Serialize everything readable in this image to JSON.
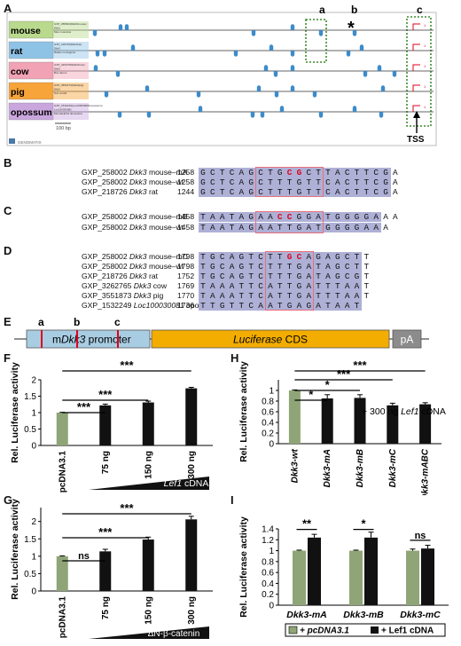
{
  "panelA": {
    "label": "A",
    "species": [
      {
        "name": "mouse",
        "color": "#b9d98c",
        "box_lines": [
          "GXP_258002(Dkk3/mouse)",
          "Dkk3",
          "Mus musculus"
        ]
      },
      {
        "name": "rat",
        "color": "#8fc3e6",
        "box_lines": [
          "GXP_218726(Dkk3/rat)",
          "Dkk3",
          "Rattus norvegicus"
        ]
      },
      {
        "name": "cow",
        "color": "#f2a2b5",
        "box_lines": [
          "GXP_3262765(Dkk3/cow)",
          "Dkk3",
          "Bos taurus"
        ]
      },
      {
        "name": "pig",
        "color": "#f7a43a",
        "box_lines": [
          "GXP_3551873(Dkk3/pig)",
          "Dkk3",
          "Sus scrofa"
        ]
      },
      {
        "name": "opossum",
        "color": "#c9a6de",
        "box_lines": [
          "GXP_1532249(Loc100030081/opossum)",
          "Loc100030081",
          "Monodelphis domestica"
        ]
      }
    ],
    "site_labels": [
      "a",
      "b",
      "c"
    ],
    "star": "*",
    "scalebar": "100 bp",
    "tss": "TSS",
    "footer_logo": "GENOMATIX"
  },
  "panelB": {
    "label": "B",
    "rows": [
      {
        "gene": "GXP_258002",
        "symbol": "Dkk3",
        "suffix": " mouse–mA",
        "pos": "1258",
        "seq": "GCTCAGCTGCGCTTACTTCGA"
      },
      {
        "gene": "GXP_258002",
        "symbol": "Dkk3",
        "suffix": " mouse–wt",
        "pos": "1258",
        "seq": "GCTCAGCTTTGTTCACTTCGA"
      },
      {
        "gene": "GXP_218726",
        "symbol": "Dkk3",
        "suffix": " rat",
        "pos": "1244",
        "seq": "GCTCAGCTTTGTTCACTTCGA"
      }
    ]
  },
  "panelC": {
    "label": "C",
    "rows": [
      {
        "gene": "GXP_258002",
        "symbol": "Dkk3",
        "suffix": " mouse–mB",
        "pos": "1458",
        "seq": "TAATAGAACCGGATGGGGAAA"
      },
      {
        "gene": "GXP_258002",
        "symbol": "Dkk3",
        "suffix": " mouse–wt",
        "pos": "1458",
        "seq": "TAATAGAATTGATGGGGAAA"
      }
    ]
  },
  "panelD": {
    "label": "D",
    "rows": [
      {
        "gene": "GXP_258002",
        "symbol": "Dkk3",
        "suffix": " mouse–mC",
        "pos": "1798",
        "seq": "TGCAGTCTTGCAGAGCTT"
      },
      {
        "gene": "GXP_258002",
        "symbol": "Dkk3",
        "suffix": " mouse–wt",
        "pos": "1798",
        "seq": "TGCAGTCTTTGATAGCTT"
      },
      {
        "gene": "GXP_218726",
        "symbol": "Dkk3",
        "suffix": " rat",
        "pos": "1752",
        "seq": "TGCAGTCTTTGATAGCGT"
      },
      {
        "gene": "GXP_3262765",
        "symbol": "Dkk3",
        "suffix": " cow",
        "pos": "1769",
        "seq": "TAAATTCATTGATTTAAT"
      },
      {
        "gene": "GXP_3551873",
        "symbol": "Dkk3",
        "suffix": " pig",
        "pos": "1770",
        "seq": "TAAATTCATTGATTTAAT"
      },
      {
        "gene": "GXP_1532249",
        "symbol": "Loc100030081",
        "suffix": " opossum",
        "pos": "1736",
        "seq": "TTGTTCAATGAGATAAT"
      }
    ]
  },
  "panelE": {
    "label": "E",
    "site_labels": [
      "a",
      "b",
      "c"
    ],
    "promoter_pre": "m",
    "promoter_gene": "Dkk3",
    "promoter_post": " promoter",
    "cds_gene": "Luciferase",
    "cds_post": " CDS",
    "pa": "pA"
  },
  "colors": {
    "control_bar": "#8fa577",
    "treatment_bar": "#111111",
    "mutant_site": "#e0001b",
    "seq_highlight": "#aeb0d6",
    "box_outline": "#e8707a",
    "promoter": "#a8cde3",
    "cds": "#f2ad00",
    "pa": "#8c8c8c"
  },
  "chart_data": [
    {
      "panel": "F",
      "type": "bar",
      "categories": [
        "pcDNA3.1",
        "75 ng",
        "150 ng",
        "300 ng"
      ],
      "values": [
        1.0,
        1.22,
        1.31,
        1.74
      ],
      "errors": [
        0.01,
        0.04,
        0.04,
        0.03
      ],
      "ylabel": "Rel. Luciferase activity",
      "ylim": [
        0,
        2
      ],
      "yticks": [
        "0",
        "0.5",
        "1",
        "1.5",
        "2"
      ],
      "treatment_label_gene": "Lef1",
      "treatment_label_post": " cDNA",
      "significance": [
        {
          "from": "pcDNA3.1",
          "to": "75 ng",
          "label": "***"
        },
        {
          "from": "pcDNA3.1",
          "to": "150 ng",
          "label": "***"
        },
        {
          "from": "pcDNA3.1",
          "to": "300 ng",
          "label": "***"
        }
      ]
    },
    {
      "panel": "G",
      "type": "bar",
      "categories": [
        "pcDNA3.1",
        "75 ng",
        "150 ng",
        "300 ng"
      ],
      "values": [
        1.0,
        1.14,
        1.48,
        2.06
      ],
      "errors": [
        0.01,
        0.06,
        0.07,
        0.09
      ],
      "ylabel": "Rel. Luciferase activity",
      "ylim": [
        0,
        2.4
      ],
      "yticks": [
        "0",
        "0.5",
        "1",
        "1.5",
        "2"
      ],
      "treatment_label": "ΔN-β-catenin",
      "significance": [
        {
          "from": "pcDNA3.1",
          "to": "75 ng",
          "label": "ns"
        },
        {
          "from": "pcDNA3.1",
          "to": "150 ng",
          "label": "***"
        },
        {
          "from": "pcDNA3.1",
          "to": "300 ng",
          "label": "***"
        }
      ]
    },
    {
      "panel": "H",
      "type": "bar",
      "categories": [
        "Dkk3-wt",
        "Dkk3-mA",
        "Dkk3-mB",
        "Dkk3-mC",
        "Dkk3-mABC"
      ],
      "values": [
        1.0,
        0.85,
        0.86,
        0.72,
        0.74
      ],
      "errors": [
        0.01,
        0.07,
        0.06,
        0.04,
        0.03
      ],
      "ylabel": "Rel. Luciferase activity",
      "ylim": [
        0,
        1.2
      ],
      "yticks": [
        "0",
        "0.2",
        "0.4",
        "0.6",
        "0.8",
        "1"
      ],
      "annotation_pre": "+ 300 ng ",
      "annotation_gene": "Lef1",
      "annotation_post": " cDNA",
      "significance": [
        {
          "from": "Dkk3-wt",
          "to": "Dkk3-mA",
          "label": "*"
        },
        {
          "from": "Dkk3-wt",
          "to": "Dkk3-mB",
          "label": "*"
        },
        {
          "from": "Dkk3-wt",
          "to": "Dkk3-mC",
          "label": "***"
        },
        {
          "from": "Dkk3-wt",
          "to": "Dkk3-mABC",
          "label": "***"
        }
      ]
    },
    {
      "panel": "I",
      "type": "bar",
      "categories": [
        "Dkk3-mA",
        "Dkk3-mB",
        "Dkk3-mC"
      ],
      "series": [
        {
          "name": "+ pcDNA3.1",
          "values": [
            1.0,
            1.0,
            1.0
          ],
          "errors": [
            0.01,
            0.01,
            0.03
          ]
        },
        {
          "name": "+ Lef1 cDNA",
          "values": [
            1.24,
            1.24,
            1.04
          ],
          "errors": [
            0.06,
            0.1,
            0.06
          ]
        }
      ],
      "ylabel": "Rel. Luciferase activity",
      "ylim": [
        0,
        1.4
      ],
      "yticks": [
        "0",
        "0.2",
        "0.4",
        "0.6",
        "0.8",
        "1",
        "1.2",
        "1.4"
      ],
      "significance": [
        {
          "group": "Dkk3-mA",
          "label": "**"
        },
        {
          "group": "Dkk3-mB",
          "label": "*"
        },
        {
          "group": "Dkk3-mC",
          "label": "ns"
        }
      ],
      "legend_position": "bottom"
    }
  ]
}
